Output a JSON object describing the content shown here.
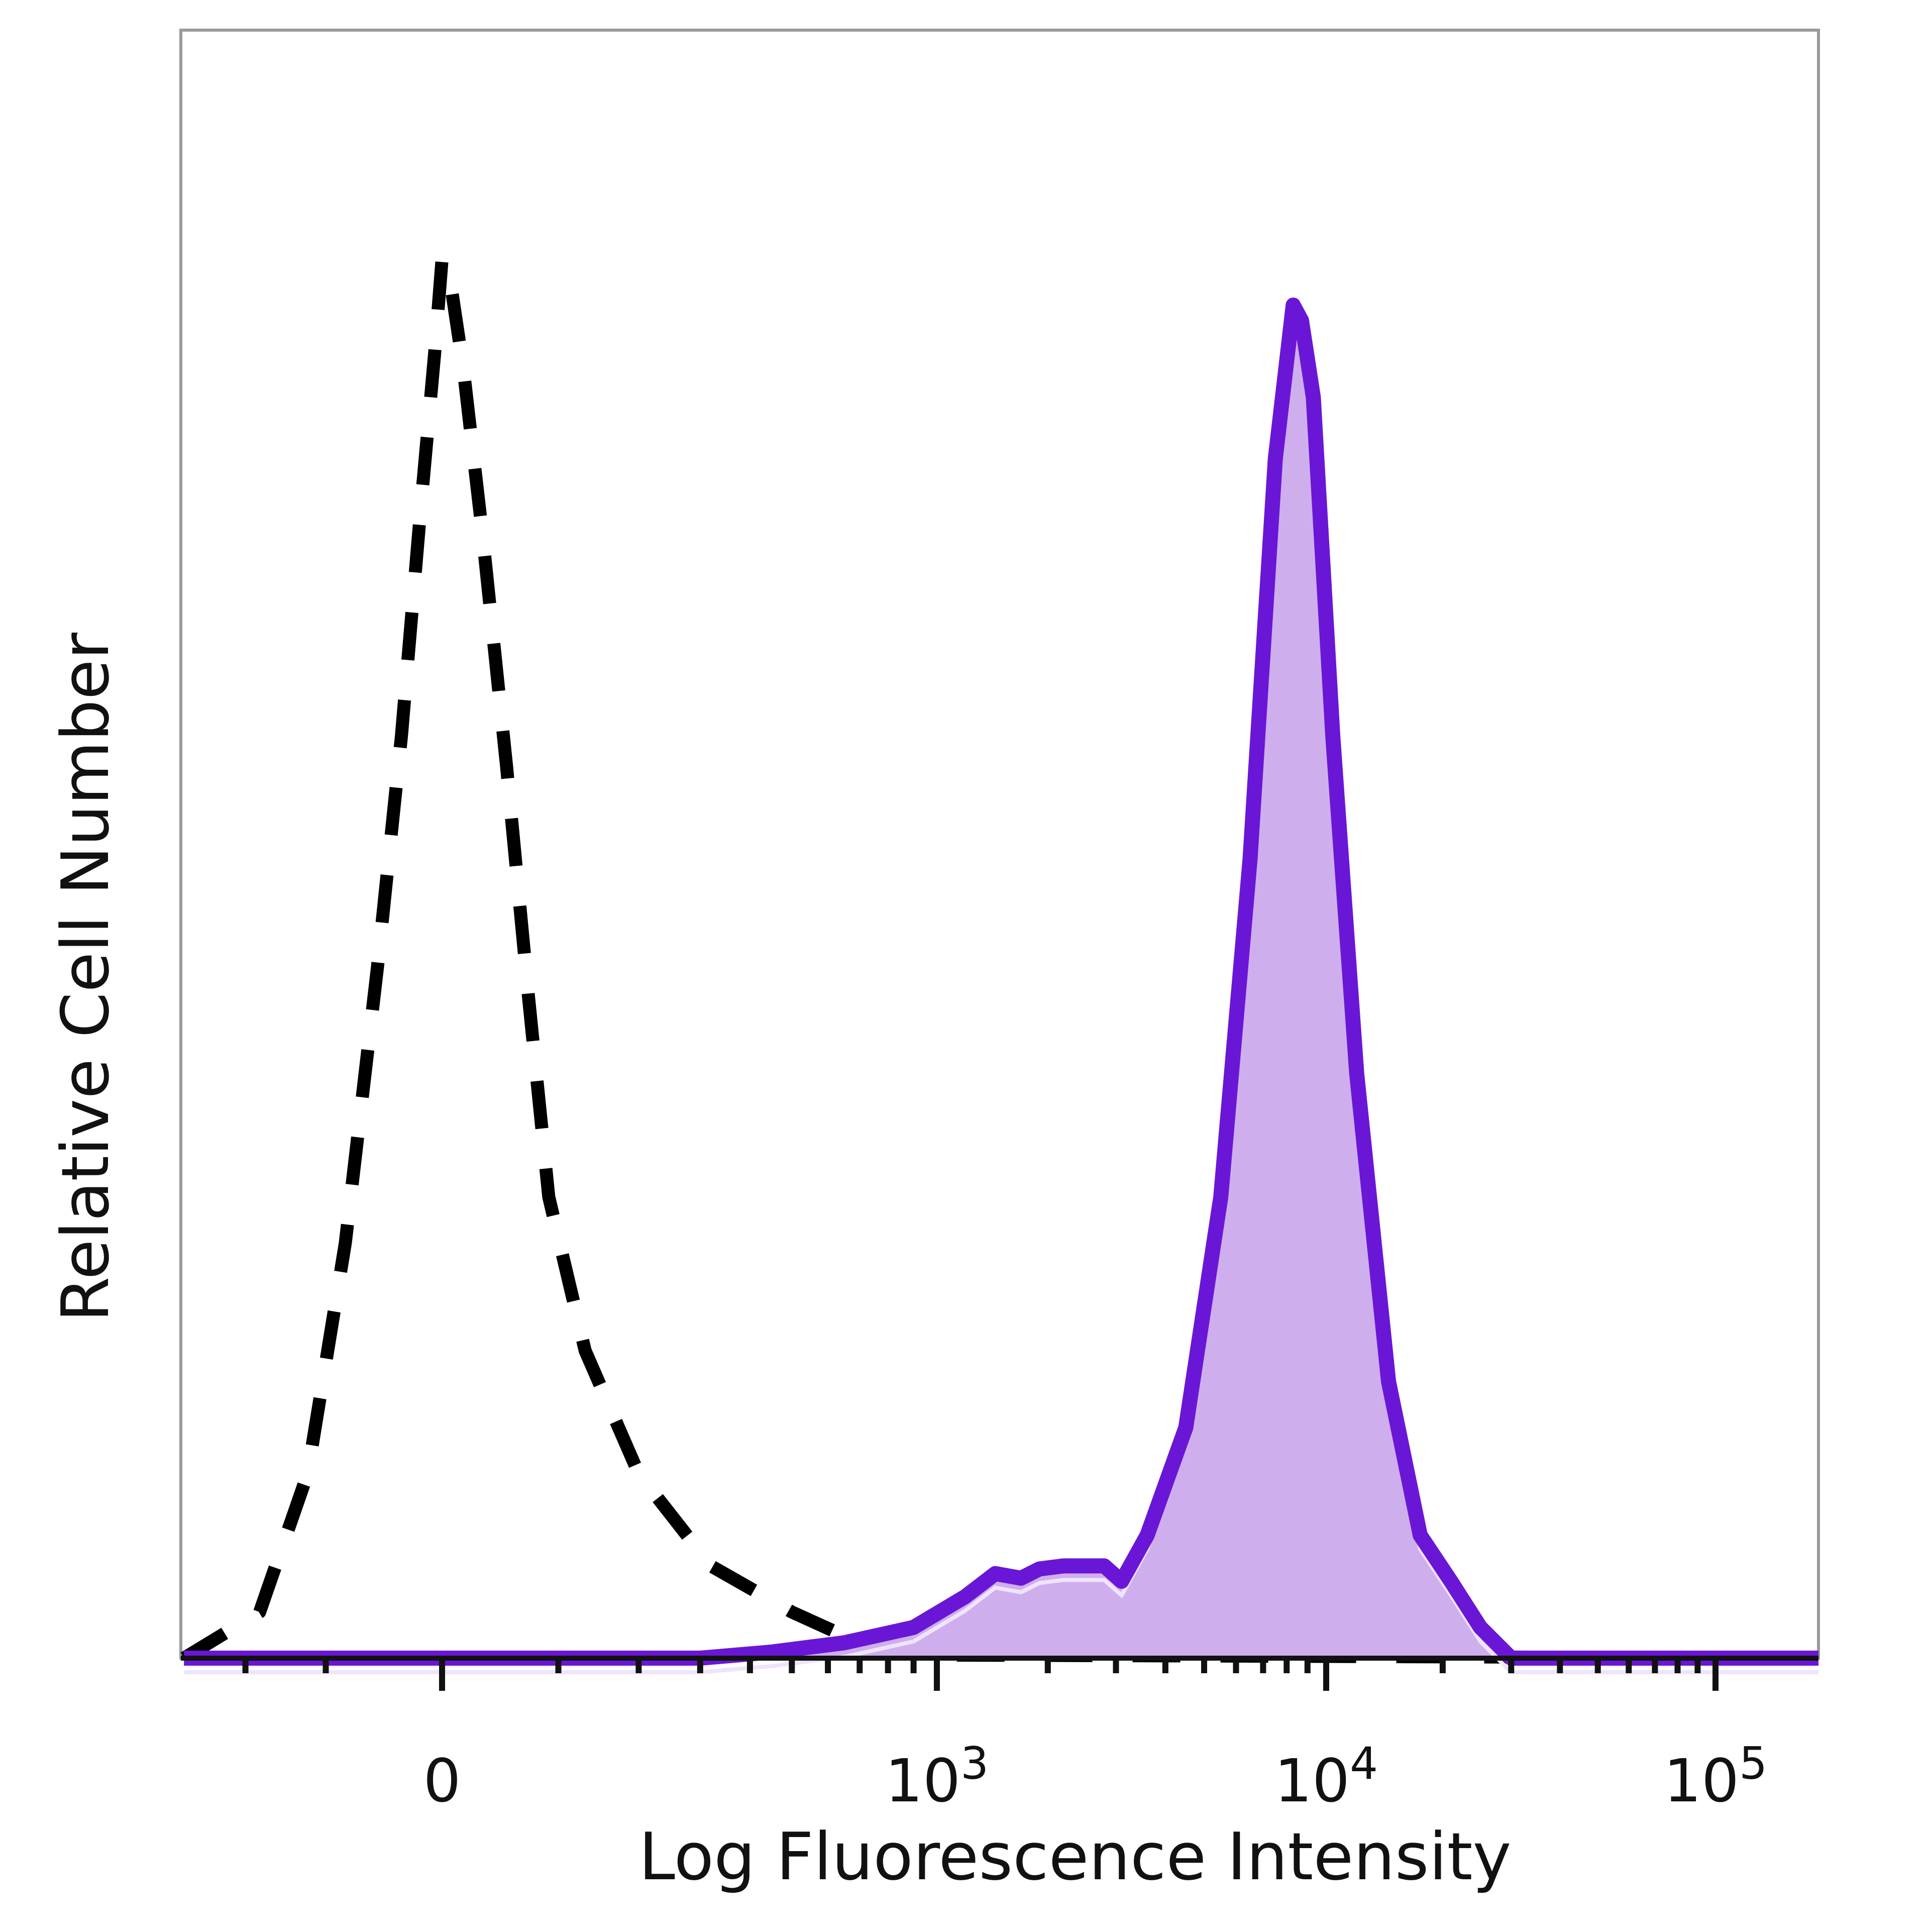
{
  "chart_data": {
    "type": "area",
    "title": "",
    "xlabel": "Log Fluorescence Intensity",
    "ylabel": "Relative Cell Number",
    "x_scale": "biexponential",
    "x_ticks": [
      {
        "value": 0,
        "label": "0"
      },
      {
        "value": 1000,
        "label": "10",
        "exp": "3"
      },
      {
        "value": 10000,
        "label": "10",
        "exp": "4"
      },
      {
        "value": 100000,
        "label": "10",
        "exp": "5"
      }
    ],
    "xlim": [
      -300,
      250000
    ],
    "ylim": [
      0,
      100
    ],
    "grid": false,
    "legend": "none",
    "series": [
      {
        "style": "dashed",
        "color": "#000000",
        "points": [
          [
            -300,
            0
          ],
          [
            -180,
            3
          ],
          [
            -120,
            12
          ],
          [
            -80,
            27
          ],
          [
            -50,
            45
          ],
          [
            -30,
            60
          ],
          [
            -15,
            75
          ],
          [
            -5,
            85
          ],
          [
            0,
            91
          ],
          [
            5,
            90
          ],
          [
            15,
            84
          ],
          [
            30,
            73
          ],
          [
            50,
            58
          ],
          [
            70,
            43
          ],
          [
            90,
            30
          ],
          [
            130,
            20
          ],
          [
            200,
            12
          ],
          [
            320,
            6
          ],
          [
            500,
            3
          ],
          [
            700,
            1
          ],
          [
            1100,
            0.2
          ],
          [
            250000,
            0
          ]
        ]
      },
      {
        "style": "solid-filled",
        "color": "#6a16d6",
        "fill": "#cfaeee",
        "points": [
          [
            -300,
            0
          ],
          [
            300,
            0
          ],
          [
            450,
            0.4
          ],
          [
            650,
            1
          ],
          [
            900,
            2
          ],
          [
            1200,
            4
          ],
          [
            1450,
            5.5
          ],
          [
            1700,
            5.2
          ],
          [
            1900,
            5.8
          ],
          [
            2200,
            6
          ],
          [
            2500,
            6
          ],
          [
            2800,
            6
          ],
          [
            3100,
            5
          ],
          [
            3600,
            8
          ],
          [
            4500,
            15
          ],
          [
            5500,
            30
          ],
          [
            6500,
            52
          ],
          [
            7500,
            78
          ],
          [
            8300,
            88
          ],
          [
            8700,
            87
          ],
          [
            9300,
            82
          ],
          [
            10400,
            60
          ],
          [
            12000,
            38
          ],
          [
            14500,
            18
          ],
          [
            17500,
            8
          ],
          [
            21000,
            5
          ],
          [
            25000,
            2
          ],
          [
            30000,
            0
          ],
          [
            250000,
            0
          ]
        ]
      }
    ]
  }
}
